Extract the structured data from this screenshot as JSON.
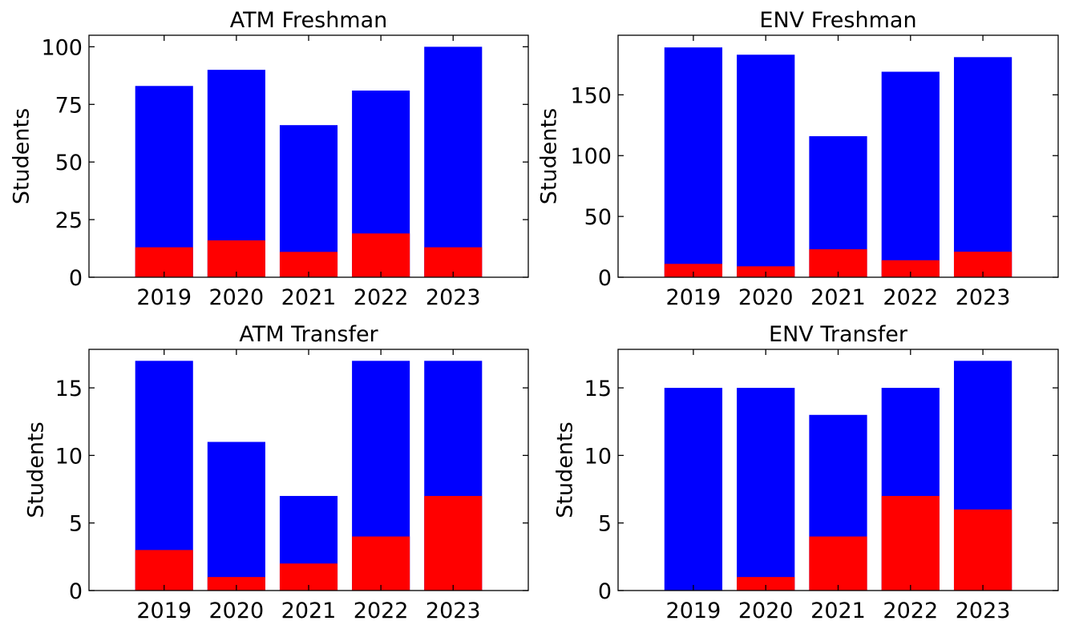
{
  "figure": {
    "background": "#ffffff",
    "bar_colors": {
      "total": "#0000ff",
      "highlight": "#ff0000"
    }
  },
  "chart_data": [
    {
      "type": "bar",
      "id": "atm-freshman",
      "title": "ATM Freshman",
      "xlabel": "",
      "ylabel": "Students",
      "categories": [
        "2019",
        "2020",
        "2021",
        "2022",
        "2023"
      ],
      "ylim": [
        0,
        105
      ],
      "yticks": [
        0,
        25,
        50,
        75,
        100
      ],
      "series": [
        {
          "color": "#0000ff",
          "values": [
            83,
            90,
            66,
            81,
            100
          ]
        },
        {
          "color": "#ff0000",
          "values": [
            13,
            16,
            11,
            19,
            13
          ]
        }
      ]
    },
    {
      "type": "bar",
      "id": "env-freshman",
      "title": "ENV Freshman",
      "xlabel": "",
      "ylabel": "Students",
      "categories": [
        "2019",
        "2020",
        "2021",
        "2022",
        "2023"
      ],
      "ylim": [
        0,
        199
      ],
      "yticks": [
        0,
        50,
        100,
        150
      ],
      "series": [
        {
          "color": "#0000ff",
          "values": [
            189,
            183,
            116,
            169,
            181
          ]
        },
        {
          "color": "#ff0000",
          "values": [
            11,
            9,
            23,
            14,
            21
          ]
        }
      ]
    },
    {
      "type": "bar",
      "id": "atm-transfer",
      "title": "ATM Transfer",
      "xlabel": "",
      "ylabel": "Students",
      "categories": [
        "2019",
        "2020",
        "2021",
        "2022",
        "2023"
      ],
      "ylim": [
        0,
        17.85
      ],
      "yticks": [
        0,
        5,
        10,
        15
      ],
      "series": [
        {
          "color": "#0000ff",
          "values": [
            17,
            11,
            7,
            17,
            17
          ]
        },
        {
          "color": "#ff0000",
          "values": [
            3,
            1,
            2,
            4,
            7
          ]
        }
      ]
    },
    {
      "type": "bar",
      "id": "env-transfer",
      "title": "ENV Transfer",
      "xlabel": "",
      "ylabel": "Students",
      "categories": [
        "2019",
        "2020",
        "2021",
        "2022",
        "2023"
      ],
      "ylim": [
        0,
        17.85
      ],
      "yticks": [
        0,
        5,
        10,
        15
      ],
      "series": [
        {
          "color": "#0000ff",
          "values": [
            15,
            15,
            13,
            15,
            17
          ]
        },
        {
          "color": "#ff0000",
          "values": [
            0,
            1,
            4,
            7,
            6
          ]
        }
      ]
    }
  ]
}
